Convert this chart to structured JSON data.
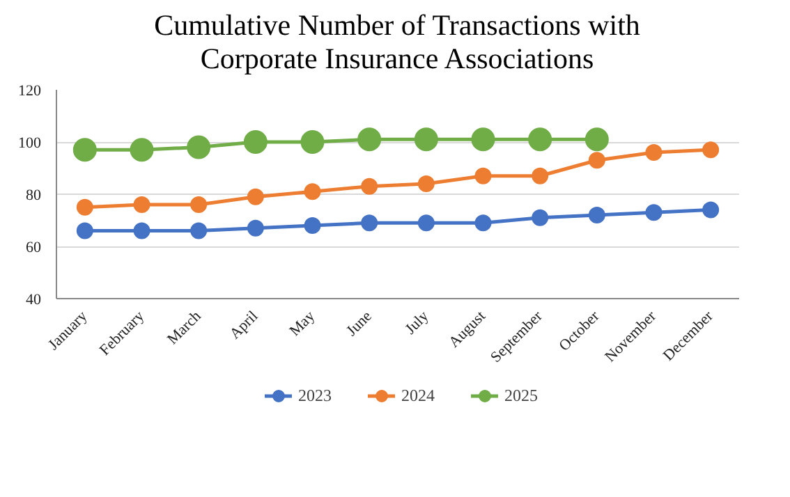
{
  "chart_data": {
    "type": "line",
    "title": "Cumulative Number of Transactions with\nCorporate Insurance Associations",
    "categories": [
      "January",
      "February",
      "March",
      "April",
      "May",
      "June",
      "July",
      "August",
      "September",
      "October",
      "November",
      "December"
    ],
    "series": [
      {
        "name": "2023",
        "color": "#4472c4",
        "values": [
          66,
          66,
          66,
          67,
          68,
          69,
          69,
          69,
          71,
          72,
          73,
          74
        ]
      },
      {
        "name": "2024",
        "color": "#ed7d31",
        "values": [
          75,
          76,
          76,
          79,
          81,
          83,
          84,
          87,
          87,
          93,
          96,
          97
        ]
      },
      {
        "name": "2025",
        "color": "#70ad47",
        "values": [
          97,
          97,
          98,
          100,
          100,
          101,
          101,
          101,
          101,
          101,
          null,
          null
        ]
      }
    ],
    "ylim": [
      40,
      120
    ],
    "yticks": [
      40,
      60,
      80,
      100,
      120
    ],
    "grid": "y",
    "legend": "bottom",
    "marker": "circle",
    "line_style": "solid"
  }
}
